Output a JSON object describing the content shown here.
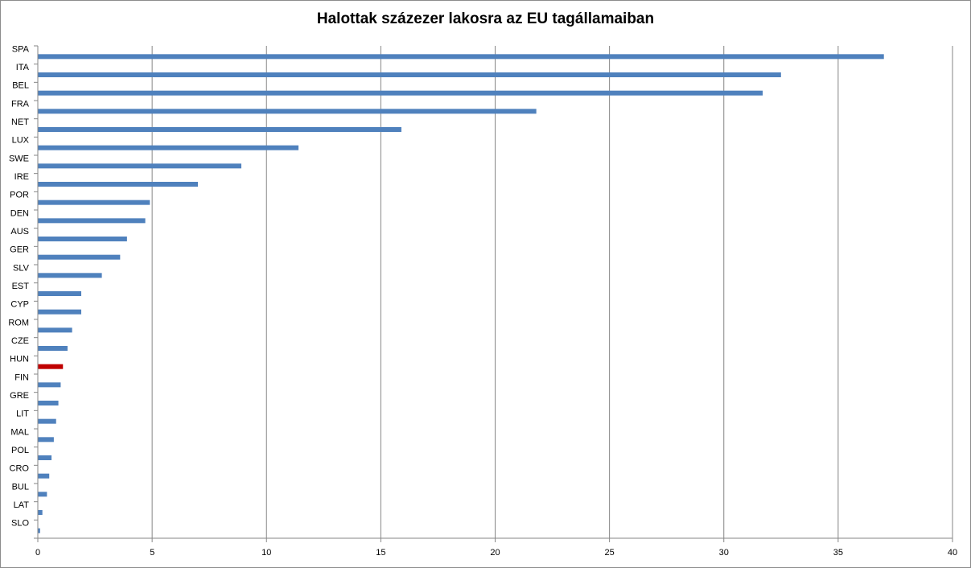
{
  "chart_data": {
    "type": "bar",
    "orientation": "horizontal",
    "title": "Halottak százezer lakosra az EU tagállamaiban",
    "xlabel": "",
    "ylabel": "",
    "xlim": [
      0,
      40
    ],
    "x_ticks": [
      0,
      5,
      10,
      15,
      20,
      25,
      30,
      35,
      40
    ],
    "grid": "vertical major gridlines",
    "legend": "none",
    "colors": {
      "default": "#4f81bd",
      "highlight": "#c00000"
    },
    "highlight_category": "HUN",
    "categories": [
      "SPA",
      "ITA",
      "BEL",
      "FRA",
      "NET",
      "LUX",
      "SWE",
      "IRE",
      "POR",
      "DEN",
      "AUS",
      "GER",
      "SLV",
      "EST",
      "CYP",
      "ROM",
      "CZE",
      "HUN",
      "FIN",
      "GRE",
      "LIT",
      "MAL",
      "POL",
      "CRO",
      "BUL",
      "LAT",
      "SLO"
    ],
    "values": [
      37.0,
      32.5,
      31.7,
      21.8,
      15.9,
      11.4,
      8.9,
      7.0,
      4.9,
      4.7,
      3.9,
      3.6,
      2.8,
      1.9,
      1.9,
      1.5,
      1.3,
      1.1,
      1.0,
      0.9,
      0.8,
      0.7,
      0.6,
      0.5,
      0.4,
      0.2,
      0.1
    ]
  }
}
